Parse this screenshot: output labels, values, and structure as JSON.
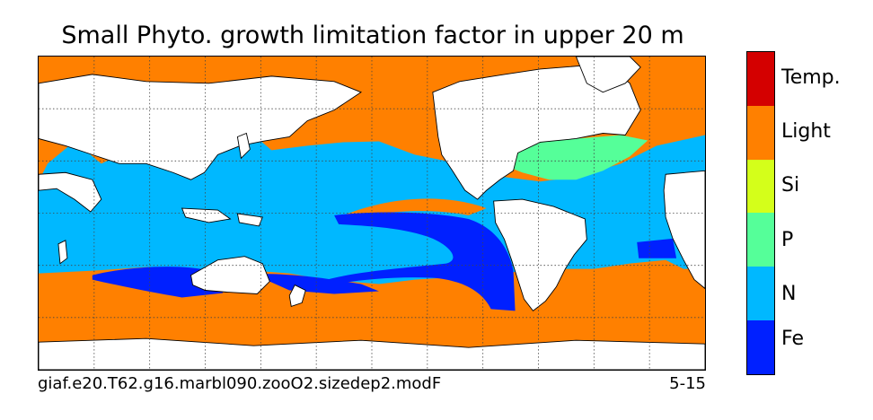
{
  "title": "Small Phyto. growth limitation factor in upper 20 m",
  "footer": {
    "case_name": "giaf.e20.T62.g16.marbl090.zooO2.sizedep2.modF",
    "years": "5-15"
  },
  "colorbar": {
    "categories": [
      {
        "label": "Temp.",
        "color": "#d40000"
      },
      {
        "label": "Light",
        "color": "#ff8000"
      },
      {
        "label": "Si",
        "color": "#d4ff1a"
      },
      {
        "label": "P",
        "color": "#55ff99"
      },
      {
        "label": "N",
        "color": "#00b8ff"
      },
      {
        "label": "Fe",
        "color": "#0020ff"
      }
    ]
  },
  "map": {
    "projection": "cylindrical",
    "gridlines": "dotted",
    "land_color": "#ffffff",
    "coastline_color": "#000000"
  }
}
